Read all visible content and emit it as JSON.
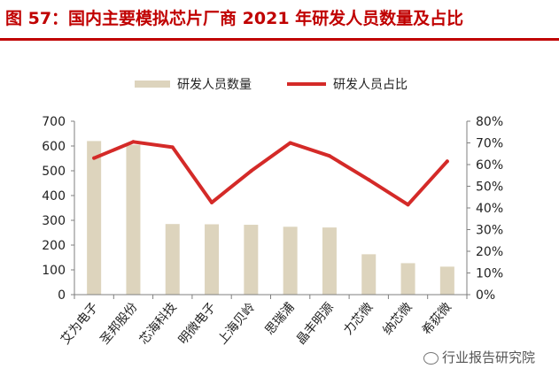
{
  "header": {
    "title": "图 57：国内主要模拟芯片厂商 2021 年研发人员数量及占比"
  },
  "watermark": {
    "text": "行业报告研究院"
  },
  "colors": {
    "bar": "#ddd4bd",
    "line": "#d42a28",
    "title": "#c00000",
    "axis": "#7f7f7f",
    "text": "#222222"
  },
  "chart_data": {
    "type": "bar",
    "title": "国内主要模拟芯片厂商 2021 年研发人员数量及占比",
    "categories": [
      "艾为电子",
      "圣邦股份",
      "芯海科技",
      "明微电子",
      "上海贝岭",
      "思瑞浦",
      "晶丰明源",
      "力芯微",
      "纳芯微",
      "希荻微"
    ],
    "series": [
      {
        "name": "研发人员数量",
        "type": "bar",
        "axis": "left",
        "values": [
          620,
          605,
          285,
          284,
          282,
          274,
          271,
          163,
          127,
          113
        ]
      },
      {
        "name": "研发人员占比",
        "type": "line",
        "axis": "right",
        "values": [
          63,
          70.5,
          68,
          42.5,
          57,
          70,
          64,
          53,
          41.5,
          61.5
        ]
      }
    ],
    "y_left": {
      "ylim": [
        0,
        700
      ],
      "ticks": [
        "0",
        "100",
        "200",
        "300",
        "400",
        "500",
        "600",
        "700"
      ]
    },
    "y_right": {
      "ylim": [
        0,
        80
      ],
      "ticks": [
        "0%",
        "10%",
        "20%",
        "30%",
        "40%",
        "50%",
        "60%",
        "70%",
        "80%"
      ]
    },
    "legend": {
      "placement": "top-center",
      "items": [
        "研发人员数量",
        "研发人员占比"
      ]
    },
    "grid": false
  }
}
